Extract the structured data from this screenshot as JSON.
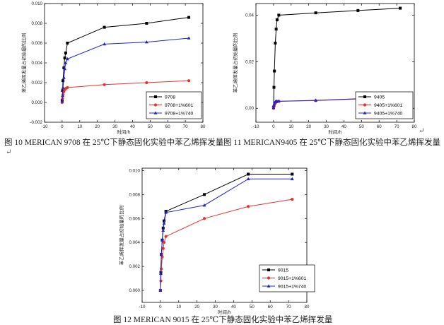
{
  "chart_data": [
    {
      "type": "line",
      "xlabel": "时间/h",
      "ylabel": "苯乙烯挥发量占初始量的比例",
      "xlim": [
        -10,
        80
      ],
      "ylim": [
        -0.002,
        0.01
      ],
      "xticks": [
        -10,
        0,
        10,
        20,
        30,
        40,
        50,
        60,
        70,
        80
      ],
      "yticks": [
        -0.002,
        0.0,
        0.002,
        0.004,
        0.006,
        0.008,
        0.01
      ],
      "ytick_labels": [
        "-0.002",
        "0.000",
        "0.002",
        "0.004",
        "0.006",
        "0.008",
        "0.010"
      ],
      "legend_position": "bottom-right",
      "series": [
        {
          "name": "9708",
          "color": "#000000",
          "marker": "square",
          "x": [
            0,
            0.25,
            0.5,
            1,
            1.5,
            2,
            3,
            24,
            48,
            72
          ],
          "y": [
            0.0002,
            0.0012,
            0.0022,
            0.0035,
            0.0045,
            0.005,
            0.006,
            0.0076,
            0.008,
            0.0086
          ]
        },
        {
          "name": "9708+1%601",
          "color": "#e8312b",
          "marker": "circle",
          "x": [
            0,
            0.25,
            0.5,
            1,
            1.5,
            2,
            3,
            24,
            48,
            72
          ],
          "y": [
            0.0,
            0.0004,
            0.0008,
            0.0011,
            0.0013,
            0.0014,
            0.0015,
            0.0018,
            0.002,
            0.0022
          ]
        },
        {
          "name": "9708+1%740",
          "color": "#2024c8",
          "marker": "triangle",
          "x": [
            0,
            0.25,
            0.5,
            1,
            1.5,
            2,
            3,
            24,
            48,
            72
          ],
          "y": [
            0.0001,
            0.0007,
            0.0015,
            0.0025,
            0.0034,
            0.004,
            0.0044,
            0.0059,
            0.0061,
            0.0065
          ]
        }
      ]
    },
    {
      "type": "line",
      "xlabel": "时间/h",
      "ylabel": "苯乙烯挥发量占初始量的比例",
      "xlim": [
        -10,
        80
      ],
      "ylim": [
        -0.006,
        0.045
      ],
      "xticks": [
        -10,
        0,
        10,
        20,
        30,
        40,
        50,
        60,
        70,
        80
      ],
      "yticks": [
        0.0,
        0.02,
        0.04
      ],
      "ytick_labels": [
        "0.00",
        "0.02",
        "0.04"
      ],
      "legend_position": "bottom-right",
      "series": [
        {
          "name": "9405",
          "color": "#000000",
          "marker": "square",
          "x": [
            0,
            0.25,
            0.5,
            1,
            1.5,
            2,
            3,
            24,
            48,
            72
          ],
          "y": [
            0.0005,
            0.009,
            0.016,
            0.028,
            0.034,
            0.038,
            0.04,
            0.041,
            0.042,
            0.043
          ]
        },
        {
          "name": "9405+1%601",
          "color": "#e8312b",
          "marker": "circle",
          "x": [
            0,
            0.25,
            0.5,
            1,
            1.5,
            2,
            3,
            24,
            48,
            72
          ],
          "y": [
            0.0,
            0.0008,
            0.0015,
            0.0022,
            0.0026,
            0.0028,
            0.003,
            0.0033,
            0.004,
            0.0045
          ]
        },
        {
          "name": "9405+1%740",
          "color": "#2024c8",
          "marker": "triangle",
          "x": [
            0,
            0.25,
            0.5,
            1,
            1.5,
            2,
            3,
            24,
            48,
            72
          ],
          "y": [
            0.0002,
            0.0012,
            0.0022,
            0.0028,
            0.003,
            0.003,
            0.003,
            0.0034,
            0.0041,
            0.0048
          ]
        }
      ]
    },
    {
      "type": "line",
      "xlabel": "时间/h",
      "ylabel": "苯乙烯挥发量占初始量的比例",
      "xlim": [
        -10,
        80
      ],
      "ylim": [
        -0.001,
        0.0102
      ],
      "xticks": [
        -10,
        0,
        10,
        20,
        30,
        40,
        50,
        60,
        70,
        80
      ],
      "yticks": [
        0.0,
        0.002,
        0.004,
        0.006,
        0.008,
        0.01
      ],
      "ytick_labels": [
        "0.000",
        "0.002",
        "0.004",
        "0.006",
        "0.008",
        "0.010"
      ],
      "legend_position": "bottom-right",
      "series": [
        {
          "name": "9015",
          "color": "#000000",
          "marker": "square",
          "x": [
            0,
            0.25,
            0.5,
            1,
            1.5,
            2,
            3,
            24,
            48,
            72
          ],
          "y": [
            0.0,
            0.0015,
            0.003,
            0.0042,
            0.0052,
            0.0058,
            0.0066,
            0.008,
            0.0097,
            0.0097
          ]
        },
        {
          "name": "9015+1%601",
          "color": "#e8312b",
          "marker": "circle",
          "x": [
            0,
            0.25,
            0.5,
            1,
            1.5,
            2,
            3,
            24,
            48,
            72
          ],
          "y": [
            0.0,
            0.0008,
            0.0018,
            0.0028,
            0.0035,
            0.004,
            0.0045,
            0.006,
            0.007,
            0.0076
          ]
        },
        {
          "name": "9015+1%740",
          "color": "#2024c8",
          "marker": "triangle",
          "x": [
            0,
            0.25,
            0.5,
            1,
            1.5,
            2,
            3,
            24,
            48,
            72
          ],
          "y": [
            0.0,
            0.0014,
            0.003,
            0.0042,
            0.005,
            0.0056,
            0.0065,
            0.0071,
            0.0093,
            0.0093
          ]
        }
      ]
    }
  ],
  "captions": {
    "fig10": "图 10  MERICAN 9708 在 25℃下静态固化实验中苯乙烯挥发量",
    "fig11": "图 11  MERICAN9405 在 25℃下静态固化实验中苯乙烯挥发量",
    "fig12": "图 12  MERICAN 9015 在 25℃下静态固化实验中苯乙烯挥发量"
  },
  "return_glyph": "↵"
}
